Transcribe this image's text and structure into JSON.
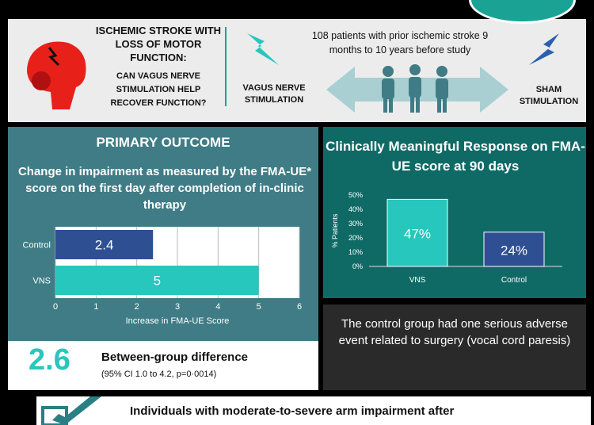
{
  "header": {
    "question_line1": "ISCHEMIC STROKE WITH LOSS OF MOTOR FUNCTION:",
    "question_line2": "CAN VAGUS NERVE STIMULATION HELP RECOVER FUNCTION?",
    "design_text": "108 patients with prior ischemic stroke 9 months to 10 years before study",
    "vns_label": "VAGUS NERVE STIMULATION",
    "sham_label": "SHAM STIMULATION"
  },
  "primary": {
    "title": "PRIMARY OUTCOME",
    "subtitle": "Change in impairment as measured by the FMA-UE* score on the first day after completion of in-clinic therapy"
  },
  "difference": {
    "value": "2.6",
    "label": "Between-group difference",
    "ci": "(95% CI 1.0 to 4.2, p=0·0014)"
  },
  "response": {
    "title": "Clinically Meaningful Response on FMA-UE score at 90 days"
  },
  "adverse": {
    "text": "The control group had one serious adverse event related to surgery (vocal cord paresis)"
  },
  "conclusion": {
    "text": "Individuals with moderate-to-severe arm impairment after"
  },
  "colors": {
    "teal": "#27c7bd",
    "navy": "#2f4f93",
    "dark_teal": "#0f6a66",
    "slate": "#3f7c86"
  },
  "chart_data": [
    {
      "type": "bar",
      "orientation": "horizontal",
      "categories": [
        "Control",
        "VNS"
      ],
      "values": [
        2.4,
        5
      ],
      "value_labels": [
        "2.4",
        "5"
      ],
      "xlabel": "Increase in FMA-UE Score",
      "xlim": [
        0,
        6
      ],
      "xticks": [
        0,
        1,
        2,
        3,
        4,
        5,
        6
      ],
      "colors": [
        "#2f4f93",
        "#27c7bd"
      ],
      "grid": "vertical"
    },
    {
      "type": "bar",
      "orientation": "vertical",
      "categories": [
        "VNS",
        "Control"
      ],
      "values": [
        47,
        24
      ],
      "value_labels": [
        "47%",
        "24%"
      ],
      "ylabel": "% Patients",
      "ylim": [
        0,
        50
      ],
      "yticks": [
        "0%",
        "10%",
        "20%",
        "30%",
        "40%",
        "50%"
      ],
      "colors": [
        "#27c7bd",
        "#2f4f93"
      ]
    }
  ]
}
